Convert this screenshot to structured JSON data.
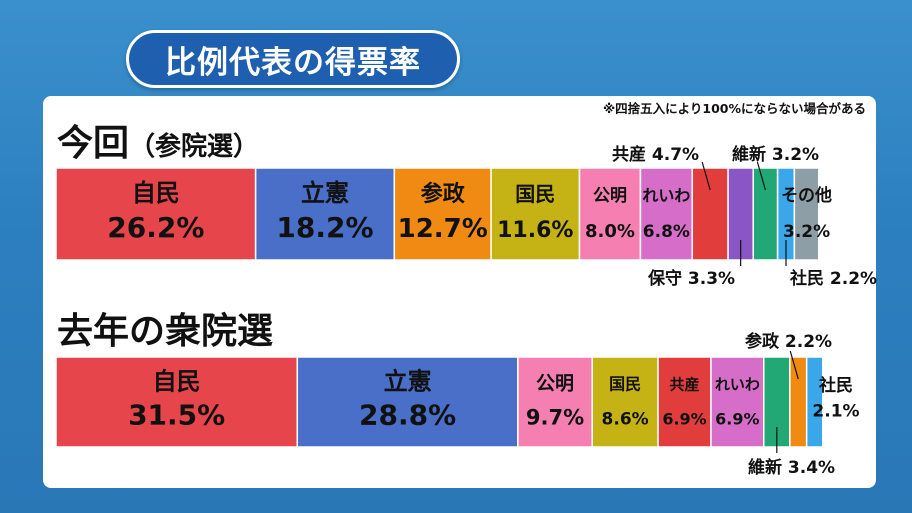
{
  "header": {
    "title": "比例代表の得票率"
  },
  "note": "※四捨五入により100%にならない場合がある",
  "sections": [
    {
      "title_main": "今回",
      "title_sub": "（参院選）"
    },
    {
      "title_main": "去年の衆院選",
      "title_sub": ""
    }
  ],
  "chart_data": [
    {
      "type": "bar",
      "stacked": true,
      "orientation": "horizontal",
      "title": "今回（参院選）",
      "unit": "%",
      "categories": [
        "自民",
        "立憲",
        "参政",
        "国民",
        "公明",
        "れいわ",
        "共産",
        "保守",
        "維新",
        "社民",
        "その他"
      ],
      "values": [
        26.2,
        18.2,
        12.7,
        11.6,
        8.0,
        6.8,
        4.7,
        3.3,
        3.2,
        2.2,
        3.2
      ],
      "colors": [
        "#e5454b",
        "#4a6fc8",
        "#f08a12",
        "#c5b214",
        "#f47fb0",
        "#d66ec9",
        "#e23d3d",
        "#8a55c4",
        "#22a875",
        "#3aa7ea",
        "#8e9ea6"
      ],
      "labels": [
        "26.2%",
        "18.2%",
        "12.7%",
        "11.6%",
        "8.0%",
        "6.8%",
        "4.7%",
        "3.3%",
        "3.2%",
        "2.2%",
        "3.2%"
      ]
    },
    {
      "type": "bar",
      "stacked": true,
      "orientation": "horizontal",
      "title": "去年の衆院選",
      "unit": "%",
      "categories": [
        "自民",
        "立憲",
        "公明",
        "国民",
        "共産",
        "れいわ",
        "維新",
        "参政",
        "社民"
      ],
      "values": [
        31.5,
        28.8,
        9.7,
        8.6,
        6.9,
        6.9,
        3.4,
        2.2,
        2.1
      ],
      "colors": [
        "#e5454b",
        "#4a6fc8",
        "#f47fb0",
        "#c5b214",
        "#e23d3d",
        "#d66ec9",
        "#22a875",
        "#f08a12",
        "#3aa7ea"
      ],
      "labels": [
        "31.5%",
        "28.8%",
        "9.7%",
        "8.6%",
        "6.9%",
        "6.9%",
        "3.4%",
        "2.2%",
        "2.1%"
      ]
    }
  ]
}
